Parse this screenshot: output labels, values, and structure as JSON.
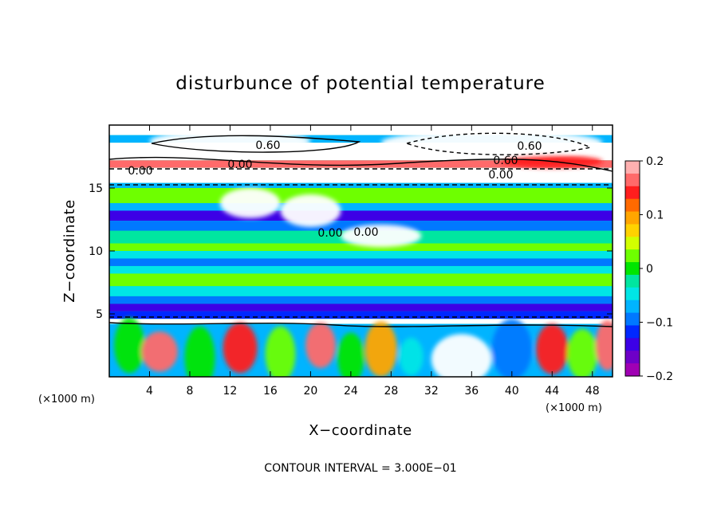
{
  "chart_data": {
    "type": "heatmap",
    "title": "disturbunce of potential temperature",
    "xlabel": "X−coordinate",
    "ylabel": "Z−coordinate",
    "x_unit_left": "(×1000 m)",
    "x_unit_right": "(×1000 m)",
    "xlim": [
      0,
      50
    ],
    "ylim": [
      0,
      20
    ],
    "x_ticks": [
      "4",
      "8",
      "12",
      "16",
      "20",
      "24",
      "28",
      "32",
      "36",
      "40",
      "44",
      "48"
    ],
    "y_ticks": [
      "5",
      "10",
      "15"
    ],
    "colorbar": {
      "range": [
        -0.2,
        0.2
      ],
      "ticks": [
        "0.2",
        "0.1",
        "0",
        "−0.1",
        "−0.2"
      ],
      "colors": [
        "#ffb0b0",
        "#ff6a6a",
        "#ff1e1e",
        "#ff6a00",
        "#ffa500",
        "#ffd200",
        "#d2ff00",
        "#6eff00",
        "#00e600",
        "#00e6a0",
        "#00e6e6",
        "#00b4ff",
        "#0078ff",
        "#0028ff",
        "#3c00e6",
        "#6e00c8",
        "#a000b4"
      ]
    },
    "contour_labels": [
      "0.60",
      "0.60",
      "0.00",
      "0.00",
      "0.60",
      "0.00",
      "0.00",
      "0.00"
    ],
    "footer": "CONTOUR INTERVAL = 3.000E−01"
  }
}
